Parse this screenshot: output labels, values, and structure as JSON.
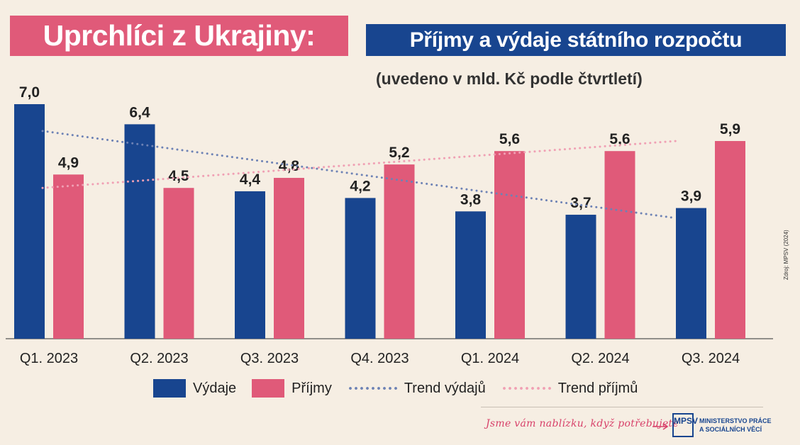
{
  "header": {
    "title": "Uprchlíci z Ukrajiny:",
    "subtitle_box": "Příjmy a výdaje státního rozpočtu",
    "unit_note": "(uvedeno v mld. Kč podle čtvrtletí)"
  },
  "colors": {
    "background": "#f6eee3",
    "vydaje": "#18458f",
    "prijmy": "#e05a79",
    "trend_vydaju": "#6d82b5",
    "trend_prijmu": "#f0a0b4"
  },
  "chart_data": {
    "type": "bar",
    "categories": [
      "Q1. 2023",
      "Q2. 2023",
      "Q3. 2023",
      "Q4. 2023",
      "Q1. 2024",
      "Q2. 2024",
      "Q3. 2024"
    ],
    "series": [
      {
        "name": "Výdaje",
        "values": [
          7.0,
          6.4,
          4.4,
          4.2,
          3.8,
          3.7,
          3.9
        ]
      },
      {
        "name": "Příjmy",
        "values": [
          4.9,
          4.5,
          4.8,
          5.2,
          5.6,
          5.6,
          5.9
        ]
      }
    ],
    "value_labels": {
      "Výdaje": [
        "7,0",
        "6,4",
        "4,4",
        "4,2",
        "3,8",
        "3,7",
        "3,9"
      ],
      "Příjmy": [
        "4,9",
        "4,5",
        "4,8",
        "5,2",
        "5,6",
        "5,6",
        "5,9"
      ]
    },
    "trend_lines": [
      {
        "name": "Trend výdajů",
        "start": 6.2,
        "end": 3.6
      },
      {
        "name": "Trend příjmů",
        "start": 4.5,
        "end": 5.9
      }
    ],
    "ylim": [
      0,
      7.0
    ],
    "grid": false,
    "legend_position": "bottom"
  },
  "legend": {
    "vydaje": "Výdaje",
    "prijmy": "Příjmy",
    "trend_vydaju": "Trend výdajů",
    "trend_prijmu": "Trend příjmů"
  },
  "footer": {
    "slogan": "Jsme vám nablízku, když potřebujete",
    "logo_text": "MPSV",
    "ministry_line1": "MINISTERSTVO PRÁCE",
    "ministry_line2": "A SOCIÁLNÍCH VĚCÍ",
    "source": "Zdroj: MPSV (2024)"
  }
}
